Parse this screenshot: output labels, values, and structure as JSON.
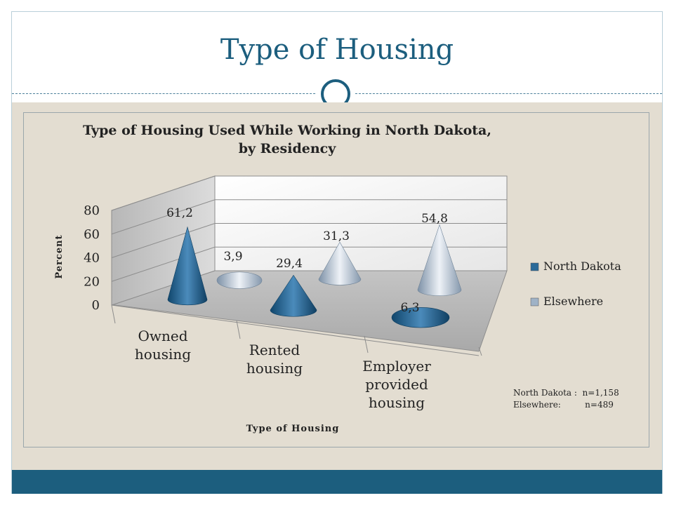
{
  "slide": {
    "title": "Type of Housing",
    "accent_color": "#1c5e7e",
    "background_color": "#e3ddd1"
  },
  "chart_data": {
    "type": "bar",
    "shape": "cone",
    "title": "Type of Housing Used While Working in North Dakota,",
    "title_line2": "by Residency",
    "xlabel": "Type of Housing",
    "ylabel": "Percent",
    "ylim": [
      0,
      80
    ],
    "yticks": [
      "0",
      "20",
      "40",
      "60",
      "80"
    ],
    "categories": [
      {
        "lines": [
          "Owned",
          "housing"
        ]
      },
      {
        "lines": [
          "Rented",
          "housing"
        ]
      },
      {
        "lines": [
          "Employer",
          "provided",
          "housing"
        ]
      }
    ],
    "series": [
      {
        "name": "North Dakota",
        "color": "#2a6a99",
        "values": [
          61.2,
          29.4,
          6.3
        ],
        "labels": [
          "61,2",
          "29,4",
          "6,3"
        ]
      },
      {
        "name": "Elsewhere",
        "color": "#9fb2c6",
        "values": [
          3.9,
          31.3,
          54.8
        ],
        "labels": [
          "3,9",
          "31,3",
          "54,8"
        ]
      }
    ],
    "legend_position": "right",
    "notes": [
      "North Dakota :  n=1,158",
      "Elsewhere:         n=489"
    ]
  }
}
